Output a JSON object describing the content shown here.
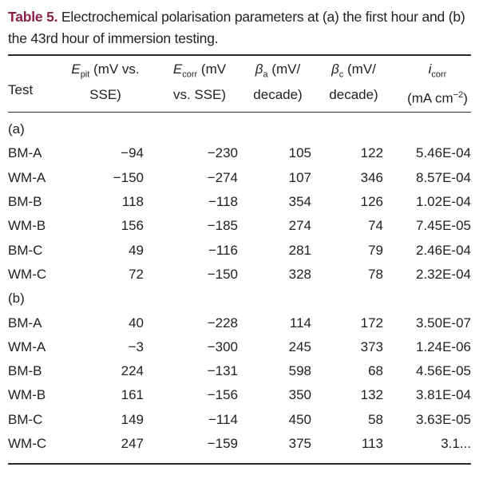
{
  "caption": {
    "label": "Table 5.",
    "text": " Electrochemical polarisation parameters at (a) the first hour and (b) the 43rd hour of immersion testing."
  },
  "headers": {
    "test": "Test",
    "epit": {
      "symbol": "E",
      "sub": "pit",
      "line1_rest": " (mV vs.",
      "line2": "SSE)"
    },
    "ecorr": {
      "symbol": "E",
      "sub": "corr",
      "line1_rest": " (mV",
      "line2": "vs. SSE)"
    },
    "ba": {
      "symbol": "β",
      "sub": "a",
      "line1_rest": " (mV/",
      "line2": "decade)"
    },
    "bc": {
      "symbol": "β",
      "sub": "c",
      "line1_rest": " (mV/",
      "line2": "decade)"
    },
    "icorr": {
      "symbol": "i",
      "sub": "corr",
      "line2_pre": "(mA cm",
      "sup": "−2",
      "line2_post": ")"
    }
  },
  "groups": [
    {
      "label": "(a)",
      "rows": [
        {
          "test": "BM-A",
          "epit": "−94",
          "ecorr": "−230",
          "ba": "105",
          "bc": "122",
          "icorr": "5.46E-04"
        },
        {
          "test": "WM-A",
          "epit": "−150",
          "ecorr": "−274",
          "ba": "107",
          "bc": "346",
          "icorr": "8.57E-04"
        },
        {
          "test": "BM-B",
          "epit": "118",
          "ecorr": "−118",
          "ba": "354",
          "bc": "126",
          "icorr": "1.02E-04"
        },
        {
          "test": "WM-B",
          "epit": "156",
          "ecorr": "−185",
          "ba": "274",
          "bc": "74",
          "icorr": "7.45E-05"
        },
        {
          "test": "BM-C",
          "epit": "49",
          "ecorr": "−116",
          "ba": "281",
          "bc": "79",
          "icorr": "2.46E-04"
        },
        {
          "test": "WM-C",
          "epit": "72",
          "ecorr": "−150",
          "ba": "328",
          "bc": "78",
          "icorr": "2.32E-04"
        }
      ]
    },
    {
      "label": "(b)",
      "rows": [
        {
          "test": "BM-A",
          "epit": "40",
          "ecorr": "−228",
          "ba": "114",
          "bc": "172",
          "icorr": "3.50E-07"
        },
        {
          "test": "WM-A",
          "epit": "−3",
          "ecorr": "−300",
          "ba": "245",
          "bc": "373",
          "icorr": "1.24E-06"
        },
        {
          "test": "BM-B",
          "epit": "224",
          "ecorr": "−131",
          "ba": "598",
          "bc": "68",
          "icorr": "4.56E-05"
        },
        {
          "test": "WM-B",
          "epit": "161",
          "ecorr": "−156",
          "ba": "350",
          "bc": "132",
          "icorr": "3.81E-04"
        },
        {
          "test": "BM-C",
          "epit": "149",
          "ecorr": "−114",
          "ba": "450",
          "bc": "58",
          "icorr": "3.63E-05"
        },
        {
          "test": "WM-C",
          "epit": "247",
          "ecorr": "−159",
          "ba": "375",
          "bc": "113",
          "icorr": "3.1..."
        }
      ]
    }
  ]
}
